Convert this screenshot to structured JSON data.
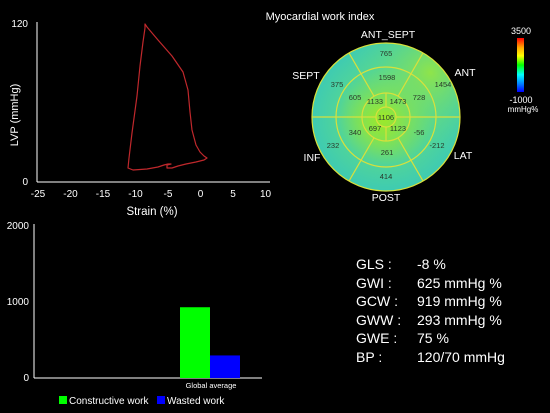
{
  "loop": {
    "ylabel": "LVP (mmHg)",
    "xlabel": "Strain (%)",
    "y_ticks": [
      "0",
      "120"
    ],
    "x_ticks": [
      "-25",
      "-20",
      "-15",
      "-10",
      "-5",
      "0",
      "5",
      "10"
    ]
  },
  "bullseye": {
    "title": "Myocardial work index",
    "labels": {
      "ant_sept": "ANT_SEPT",
      "ant": "ANT",
      "sept": "SEPT",
      "inf": "INF",
      "lat": "LAT",
      "post": "POST"
    },
    "segments": {
      "outer_antsept": "765",
      "outer_sept": "375",
      "outer_ant": "1454",
      "outer_inf": "232",
      "outer_lat": "-212",
      "outer_post": "414",
      "mid_antsept": "1598",
      "mid_sept": "605",
      "mid_ant": "728",
      "mid_inf": "340",
      "mid_lat": "-56",
      "mid_post": "261",
      "apical_sept": "1133",
      "apical_ant": "1473",
      "apical_inf": "697",
      "apical_lat": "1123",
      "apex": "1106"
    },
    "colorbar": {
      "max": "3500",
      "min": "-1000",
      "unit": "mmHg%"
    },
    "colors": {
      "bg": "#46d3a6",
      "green": "#6fe06a",
      "teal": "#3ec9b4"
    }
  },
  "work_chart": {
    "y_ticks": [
      "0",
      "1000",
      "2000"
    ],
    "legend": {
      "constructive": "Constructive work",
      "wasted": "Wasted work"
    }
  },
  "chart_data": {
    "type": "bar",
    "categories": [
      "Global average"
    ],
    "series": [
      {
        "name": "Constructive work",
        "values": [
          919
        ],
        "color": "#00ff00"
      },
      {
        "name": "Wasted work",
        "values": [
          293
        ],
        "color": "#0000ff"
      }
    ],
    "ylim": [
      0,
      2000
    ]
  },
  "metrics": [
    {
      "key": "GLS :",
      "value": "-8 %"
    },
    {
      "key": "GWI :",
      "value": "625 mmHg %"
    },
    {
      "key": "GCW :",
      "value": "919 mmHg %"
    },
    {
      "key": "GWW :",
      "value": "293 mmHg %"
    },
    {
      "key": "GWE :",
      "value": "75 %"
    },
    {
      "key": "BP :",
      "value": "120/70 mmHg"
    }
  ]
}
